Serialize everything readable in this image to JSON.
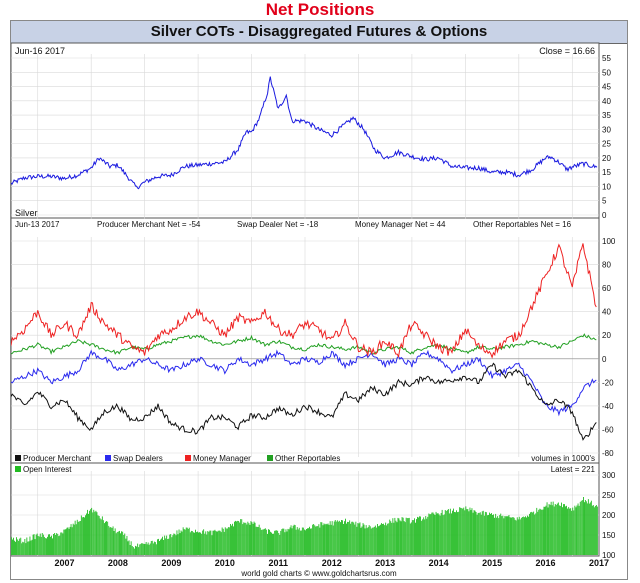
{
  "page_title": "Net Positions",
  "chart_title": "Silver COTs - Disaggregated Futures & Options",
  "footer": "world gold charts © www.goldchartsrus.com",
  "colors": {
    "title_red": "#e1001a",
    "header_bg": "#c8d2e6",
    "silver": "#1a1adf",
    "producer": "#111111",
    "swap": "#2a2aee",
    "money": "#ee2222",
    "other": "#22a022",
    "open_interest": "#22bb22"
  },
  "panel1": {
    "date_label": "Jun-16 2017",
    "close_label": "Close = 16.66",
    "series_label": "Silver"
  },
  "panel2": {
    "date_label": "Jun-13 2017",
    "producer_label": "Producer Merchant Net = -54",
    "swap_label": "Swap Dealer Net = -18",
    "money_label": "Money Manager Net = 44",
    "other_label": "Other Reportables Net = 16",
    "legend": [
      "Producer Merchant",
      "Swap Dealers",
      "Money Manager",
      "Other Reportables"
    ],
    "units_label": "volumes in 1000's"
  },
  "panel3": {
    "legend": "Open Interest",
    "latest_label": "Latest = 221"
  },
  "chart_data": [
    {
      "type": "line",
      "title": "Silver",
      "ylim": [
        0,
        55
      ],
      "yticks": [
        0,
        5,
        10,
        15,
        20,
        25,
        30,
        35,
        40,
        45,
        50,
        55
      ],
      "x_range": [
        2006.5,
        2017.5
      ],
      "series": [
        {
          "name": "Silver",
          "x": [
            2006.5,
            2006.75,
            2007.0,
            2007.25,
            2007.5,
            2007.75,
            2008.0,
            2008.15,
            2008.35,
            2008.5,
            2008.7,
            2008.85,
            2009.0,
            2009.25,
            2009.5,
            2009.75,
            2010.0,
            2010.25,
            2010.5,
            2010.75,
            2010.9,
            2011.0,
            2011.15,
            2011.3,
            2011.35,
            2011.5,
            2011.65,
            2011.75,
            2012.0,
            2012.25,
            2012.5,
            2012.7,
            2012.9,
            2013.1,
            2013.3,
            2013.5,
            2013.75,
            2014.0,
            2014.25,
            2014.5,
            2014.75,
            2015.0,
            2015.25,
            2015.5,
            2015.75,
            2016.0,
            2016.25,
            2016.5,
            2016.6,
            2016.75,
            2016.9,
            2017.0,
            2017.2,
            2017.46
          ],
          "y": [
            11,
            13,
            13.5,
            13.5,
            12.8,
            14,
            16.5,
            20,
            17,
            17.5,
            13,
            9.5,
            11.5,
            13.5,
            14,
            17,
            17.5,
            18,
            18.5,
            23,
            29,
            29,
            34,
            43,
            48,
            37,
            42,
            33,
            33,
            30,
            28,
            31,
            34,
            30,
            23,
            20,
            22,
            20.5,
            19.5,
            20,
            17,
            16.5,
            16.5,
            15,
            15,
            14,
            16,
            20,
            20.3,
            18.5,
            16,
            16.8,
            18,
            16.7
          ]
        }
      ]
    },
    {
      "type": "line",
      "title": "Net Positions",
      "ylim": [
        -80,
        100
      ],
      "yticks": [
        -80,
        -60,
        -40,
        -20,
        0,
        20,
        40,
        60,
        80,
        100
      ],
      "x_range": [
        2006.5,
        2017.5
      ],
      "series": [
        {
          "name": "Producer Merchant",
          "x": [
            2006.5,
            2006.75,
            2007.0,
            2007.25,
            2007.5,
            2007.75,
            2008.0,
            2008.25,
            2008.5,
            2008.75,
            2009.0,
            2009.25,
            2009.5,
            2009.75,
            2010.0,
            2010.25,
            2010.5,
            2010.75,
            2011.0,
            2011.25,
            2011.5,
            2011.75,
            2012.0,
            2012.25,
            2012.5,
            2012.75,
            2013.0,
            2013.25,
            2013.5,
            2013.75,
            2014.0,
            2014.25,
            2014.5,
            2014.75,
            2015.0,
            2015.25,
            2015.5,
            2015.75,
            2016.0,
            2016.25,
            2016.5,
            2016.75,
            2017.0,
            2017.2,
            2017.45
          ],
          "y": [
            -30,
            -40,
            -28,
            -40,
            -35,
            -50,
            -60,
            -45,
            -40,
            -52,
            -50,
            -40,
            -55,
            -60,
            -62,
            -50,
            -50,
            -58,
            -48,
            -50,
            -42,
            -48,
            -40,
            -45,
            -50,
            -30,
            -35,
            -25,
            -30,
            -20,
            -22,
            -15,
            -20,
            -18,
            -15,
            -20,
            -5,
            -15,
            -10,
            -25,
            -40,
            -35,
            -45,
            -70,
            -54
          ]
        },
        {
          "name": "Swap Dealers",
          "x": [
            2006.5,
            2006.75,
            2007.0,
            2007.25,
            2007.5,
            2007.75,
            2008.0,
            2008.25,
            2008.5,
            2008.75,
            2009.0,
            2009.25,
            2009.5,
            2009.75,
            2010.0,
            2010.25,
            2010.5,
            2010.75,
            2011.0,
            2011.25,
            2011.5,
            2011.75,
            2012.0,
            2012.25,
            2012.5,
            2012.75,
            2013.0,
            2013.25,
            2013.5,
            2013.75,
            2014.0,
            2014.25,
            2014.5,
            2014.75,
            2015.0,
            2015.25,
            2015.5,
            2015.75,
            2016.0,
            2016.25,
            2016.5,
            2016.75,
            2017.0,
            2017.2,
            2017.45
          ],
          "y": [
            -20,
            -15,
            -10,
            -20,
            -15,
            -10,
            5,
            0,
            -10,
            -5,
            0,
            -5,
            -10,
            -5,
            0,
            -5,
            -10,
            0,
            -5,
            0,
            5,
            -5,
            0,
            -3,
            5,
            -5,
            0,
            5,
            -5,
            0,
            -5,
            5,
            0,
            -10,
            -5,
            0,
            -15,
            -10,
            -5,
            -20,
            -40,
            -45,
            -40,
            -25,
            -18
          ]
        },
        {
          "name": "Money Manager",
          "x": [
            2006.5,
            2006.75,
            2007.0,
            2007.25,
            2007.5,
            2007.75,
            2008.0,
            2008.25,
            2008.5,
            2008.75,
            2009.0,
            2009.25,
            2009.5,
            2009.75,
            2010.0,
            2010.25,
            2010.5,
            2010.75,
            2011.0,
            2011.25,
            2011.5,
            2011.75,
            2012.0,
            2012.25,
            2012.5,
            2012.75,
            2013.0,
            2013.25,
            2013.5,
            2013.75,
            2014.0,
            2014.25,
            2014.5,
            2014.75,
            2015.0,
            2015.25,
            2015.5,
            2015.75,
            2016.0,
            2016.25,
            2016.5,
            2016.75,
            2017.0,
            2017.2,
            2017.45
          ],
          "y": [
            15,
            25,
            40,
            20,
            30,
            20,
            45,
            30,
            20,
            10,
            5,
            20,
            25,
            35,
            40,
            30,
            20,
            35,
            30,
            40,
            25,
            20,
            30,
            25,
            15,
            30,
            10,
            5,
            15,
            5,
            30,
            20,
            10,
            5,
            25,
            10,
            5,
            15,
            20,
            45,
            70,
            95,
            60,
            98,
            44
          ]
        },
        {
          "name": "Other Reportables",
          "x": [
            2006.5,
            2006.75,
            2007.0,
            2007.25,
            2007.5,
            2007.75,
            2008.0,
            2008.25,
            2008.5,
            2008.75,
            2009.0,
            2009.25,
            2009.5,
            2009.75,
            2010.0,
            2010.25,
            2010.5,
            2010.75,
            2011.0,
            2011.25,
            2011.5,
            2011.75,
            2012.0,
            2012.25,
            2012.5,
            2012.75,
            2013.0,
            2013.25,
            2013.5,
            2013.75,
            2014.0,
            2014.25,
            2014.5,
            2014.75,
            2015.0,
            2015.25,
            2015.5,
            2015.75,
            2016.0,
            2016.25,
            2016.5,
            2016.75,
            2017.0,
            2017.2,
            2017.45
          ],
          "y": [
            5,
            8,
            12,
            6,
            10,
            15,
            12,
            8,
            5,
            10,
            8,
            12,
            15,
            18,
            20,
            15,
            12,
            15,
            18,
            12,
            15,
            10,
            8,
            12,
            10,
            8,
            10,
            5,
            8,
            10,
            5,
            10,
            12,
            8,
            5,
            10,
            8,
            10,
            12,
            15,
            12,
            10,
            15,
            20,
            16
          ]
        }
      ],
      "legend_position": "bottom-left"
    },
    {
      "type": "bar",
      "title": "Open Interest",
      "ylim": [
        100,
        300
      ],
      "yticks": [
        100,
        150,
        200,
        250,
        300
      ],
      "x_range": [
        2006.5,
        2017.5
      ],
      "xticks": [
        "2007",
        "2008",
        "2009",
        "2010",
        "2011",
        "2012",
        "2013",
        "2014",
        "2015",
        "2016",
        "2017"
      ],
      "series": [
        {
          "name": "Open Interest",
          "x": [
            2006.5,
            2006.75,
            2007.0,
            2007.25,
            2007.5,
            2007.75,
            2008.0,
            2008.2,
            2008.4,
            2008.6,
            2008.8,
            2009.0,
            2009.25,
            2009.5,
            2009.75,
            2010.0,
            2010.25,
            2010.5,
            2010.75,
            2011.0,
            2011.25,
            2011.5,
            2011.75,
            2012.0,
            2012.25,
            2012.5,
            2012.75,
            2013.0,
            2013.25,
            2013.5,
            2013.75,
            2014.0,
            2014.25,
            2014.5,
            2014.75,
            2015.0,
            2015.25,
            2015.5,
            2015.75,
            2016.0,
            2016.25,
            2016.5,
            2016.75,
            2017.0,
            2017.2,
            2017.46
          ],
          "y": [
            140,
            135,
            150,
            145,
            160,
            185,
            215,
            190,
            165,
            150,
            120,
            125,
            135,
            150,
            165,
            160,
            155,
            165,
            185,
            180,
            160,
            155,
            170,
            165,
            175,
            180,
            185,
            175,
            170,
            180,
            190,
            185,
            195,
            205,
            210,
            215,
            205,
            200,
            195,
            190,
            205,
            225,
            230,
            215,
            240,
            221
          ]
        }
      ]
    }
  ]
}
